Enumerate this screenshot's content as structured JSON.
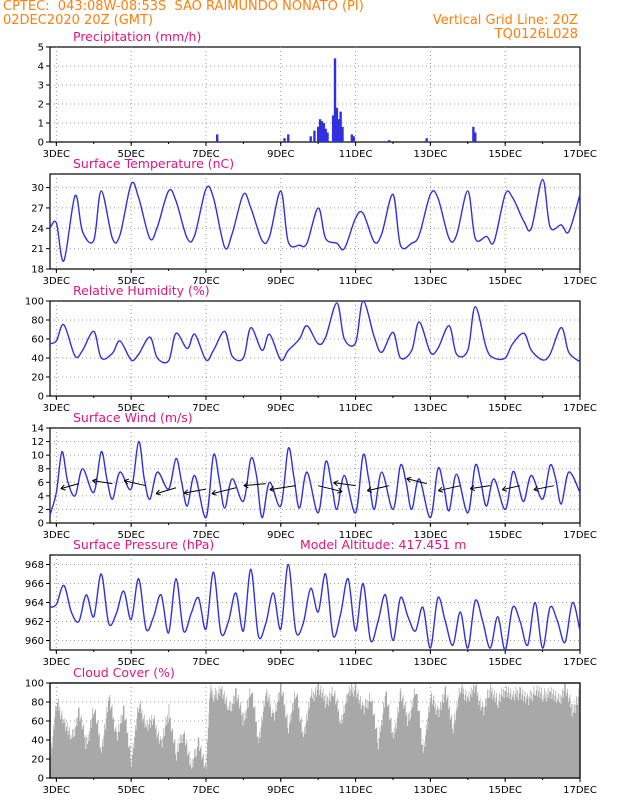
{
  "header": {
    "line1_left": "CPTEC:  043:08W-08:53S  SAO RAIMUNDO NONATO (PI)",
    "line2_left": "02DEC2020 20Z (GMT)",
    "line2_right": "Vertical Grid Line: 20Z",
    "line3_right": "TQ0126L028"
  },
  "colors": {
    "line": "#3030e0",
    "bar": "#3030e0",
    "cloud": "#a8a8a8",
    "title": "#e0157d",
    "header": "#ff7f0e",
    "grid": "#999999"
  },
  "x_ticks": [
    "3DEC",
    "5DEC",
    "7DEC",
    "9DEC",
    "11DEC",
    "13DEC",
    "15DEC",
    "17DEC"
  ],
  "chart_data": [
    {
      "type": "bar",
      "title": "Precipitation (mm/h)",
      "x_range_days": [
        2.83,
        17.0
      ],
      "ylim": [
        0,
        5
      ],
      "yticks": [
        0,
        1,
        2,
        3,
        4,
        5
      ],
      "bars": [
        {
          "day": 7.3,
          "value": 0.4
        },
        {
          "day": 9.1,
          "value": 0.2
        },
        {
          "day": 9.2,
          "value": 0.4
        },
        {
          "day": 9.8,
          "value": 0.3
        },
        {
          "day": 9.9,
          "value": 0.6
        },
        {
          "day": 10.0,
          "value": 0.8
        },
        {
          "day": 10.05,
          "value": 1.2
        },
        {
          "day": 10.1,
          "value": 1.1
        },
        {
          "day": 10.15,
          "value": 1.0
        },
        {
          "day": 10.2,
          "value": 0.7
        },
        {
          "day": 10.25,
          "value": 0.5
        },
        {
          "day": 10.4,
          "value": 1.4
        },
        {
          "day": 10.45,
          "value": 4.4
        },
        {
          "day": 10.5,
          "value": 1.8
        },
        {
          "day": 10.55,
          "value": 1.2
        },
        {
          "day": 10.6,
          "value": 1.6
        },
        {
          "day": 10.65,
          "value": 0.8
        },
        {
          "day": 10.9,
          "value": 0.4
        },
        {
          "day": 10.95,
          "value": 0.3
        },
        {
          "day": 11.9,
          "value": 0.1
        },
        {
          "day": 12.9,
          "value": 0.2
        },
        {
          "day": 14.15,
          "value": 0.8
        },
        {
          "day": 14.2,
          "value": 0.5
        }
      ]
    },
    {
      "type": "line",
      "title": "Surface Temperature (nC)",
      "x_range_days": [
        2.83,
        17.0
      ],
      "ylim": [
        18,
        32
      ],
      "yticks": [
        18,
        21,
        24,
        27,
        30
      ],
      "x": [
        2.83,
        3.0,
        3.2,
        3.5,
        3.7,
        4.0,
        4.2,
        4.5,
        4.7,
        5.0,
        5.2,
        5.5,
        5.7,
        6.0,
        6.2,
        6.5,
        6.7,
        7.0,
        7.2,
        7.5,
        7.7,
        8.0,
        8.2,
        8.5,
        8.7,
        9.0,
        9.2,
        9.5,
        9.7,
        10.0,
        10.2,
        10.5,
        10.7,
        11.0,
        11.2,
        11.5,
        11.7,
        12.0,
        12.2,
        12.5,
        12.7,
        13.0,
        13.2,
        13.5,
        13.7,
        14.0,
        14.2,
        14.5,
        14.7,
        15.0,
        15.2,
        15.5,
        15.7,
        16.0,
        16.2,
        16.5,
        16.7,
        17.0
      ],
      "values": [
        24,
        24.8,
        19.2,
        28.8,
        23.5,
        22.2,
        29.5,
        22.5,
        23.0,
        30.5,
        28.5,
        22.5,
        24.2,
        29.5,
        28.0,
        22.5,
        23.0,
        29.8,
        28.5,
        21.2,
        23.2,
        29.0,
        27.0,
        22.2,
        22.8,
        29.5,
        22.0,
        21.5,
        21.8,
        27.0,
        22.5,
        21.8,
        21.0,
        25.5,
        26.2,
        22.0,
        23.2,
        29.0,
        21.5,
        21.8,
        23.0,
        29.0,
        28.5,
        22.5,
        23.0,
        29.5,
        22.5,
        22.8,
        22.0,
        29.0,
        28.5,
        25.0,
        24.0,
        31.2,
        24.2,
        24.5,
        23.5,
        29.0
      ]
    },
    {
      "type": "line",
      "title": "Relative Humidity (%)",
      "x_range_days": [
        2.83,
        17.0
      ],
      "ylim": [
        0,
        100
      ],
      "yticks": [
        0,
        20,
        40,
        60,
        80,
        100
      ],
      "x": [
        2.83,
        3.0,
        3.2,
        3.5,
        3.7,
        4.0,
        4.2,
        4.5,
        4.7,
        5.0,
        5.2,
        5.5,
        5.7,
        6.0,
        6.2,
        6.5,
        6.7,
        7.0,
        7.2,
        7.5,
        7.7,
        8.0,
        8.2,
        8.5,
        8.7,
        9.0,
        9.2,
        9.5,
        9.7,
        10.0,
        10.2,
        10.5,
        10.7,
        11.0,
        11.2,
        11.5,
        11.7,
        12.0,
        12.2,
        12.5,
        12.7,
        13.0,
        13.2,
        13.5,
        13.7,
        14.0,
        14.2,
        14.5,
        14.7,
        15.0,
        15.2,
        15.5,
        15.7,
        16.0,
        16.2,
        16.5,
        16.7,
        17.0
      ],
      "values": [
        55,
        58,
        75,
        42,
        48,
        68,
        40,
        45,
        58,
        38,
        44,
        62,
        40,
        37,
        66,
        50,
        65,
        38,
        48,
        68,
        42,
        40,
        72,
        48,
        65,
        38,
        48,
        60,
        74,
        55,
        62,
        98,
        60,
        56,
        100,
        62,
        46,
        67,
        40,
        48,
        78,
        46,
        50,
        74,
        44,
        48,
        94,
        50,
        40,
        40,
        55,
        66,
        48,
        38,
        44,
        72,
        46,
        36
      ]
    },
    {
      "type": "line",
      "title": "Surface Wind (m/s)",
      "x_range_days": [
        2.83,
        17.0
      ],
      "ylim": [
        0,
        14
      ],
      "yticks": [
        0,
        2,
        4,
        6,
        8,
        10,
        12,
        14
      ],
      "x": [
        2.83,
        3.0,
        3.15,
        3.3,
        3.5,
        3.7,
        4.0,
        4.2,
        4.35,
        4.5,
        4.7,
        5.0,
        5.2,
        5.35,
        5.5,
        5.7,
        6.0,
        6.2,
        6.35,
        6.5,
        6.7,
        7.0,
        7.2,
        7.35,
        7.5,
        7.7,
        8.0,
        8.2,
        8.35,
        8.5,
        8.7,
        9.0,
        9.2,
        9.35,
        9.5,
        9.7,
        10.0,
        10.2,
        10.35,
        10.5,
        10.7,
        11.0,
        11.2,
        11.35,
        11.5,
        11.7,
        12.0,
        12.2,
        12.35,
        12.5,
        12.7,
        13.0,
        13.2,
        13.35,
        13.5,
        13.7,
        14.0,
        14.2,
        14.35,
        14.5,
        14.7,
        15.0,
        15.2,
        15.35,
        15.5,
        15.7,
        16.0,
        16.2,
        16.35,
        16.5,
        16.7,
        17.0
      ],
      "values": [
        1.2,
        4.5,
        10.5,
        6.2,
        4.0,
        8.0,
        4.5,
        10.5,
        6.5,
        3.5,
        7.5,
        5.0,
        12.0,
        6.5,
        3.5,
        7.5,
        5.0,
        9.5,
        6.0,
        2.5,
        7.0,
        0.8,
        10.0,
        6.5,
        2.2,
        6.5,
        3.2,
        9.5,
        7.0,
        0.8,
        6.0,
        2.5,
        11.0,
        6.8,
        2.2,
        7.5,
        1.5,
        9.0,
        6.0,
        2.0,
        7.0,
        1.5,
        10.0,
        6.5,
        2.0,
        7.5,
        2.0,
        8.5,
        6.0,
        2.0,
        6.5,
        0.8,
        8.0,
        5.5,
        1.8,
        7.2,
        1.5,
        8.5,
        6.0,
        2.5,
        6.5,
        2.0,
        7.5,
        5.5,
        3.2,
        7.0,
        3.5,
        8.5,
        6.5,
        2.8,
        7.5,
        4.5
      ],
      "barbs": [
        {
          "day": 3.6,
          "value": 5.8,
          "dx": -18,
          "dy": 5
        },
        {
          "day": 4.5,
          "value": 5.8,
          "dx": -20,
          "dy": -3
        },
        {
          "day": 5.4,
          "value": 5.5,
          "dx": -22,
          "dy": -5
        },
        {
          "day": 6.2,
          "value": 5.2,
          "dx": -20,
          "dy": 6
        },
        {
          "day": 7.0,
          "value": 5.0,
          "dx": -22,
          "dy": 4
        },
        {
          "day": 7.8,
          "value": 5.2,
          "dx": -24,
          "dy": 6
        },
        {
          "day": 8.6,
          "value": 5.8,
          "dx": -22,
          "dy": 2
        },
        {
          "day": 9.4,
          "value": 5.5,
          "dx": -26,
          "dy": 4
        },
        {
          "day": 10.0,
          "value": 5.5,
          "dx": 24,
          "dy": 6
        },
        {
          "day": 11.0,
          "value": 5.5,
          "dx": -22,
          "dy": -3
        },
        {
          "day": 11.9,
          "value": 5.5,
          "dx": -22,
          "dy": 5
        },
        {
          "day": 12.9,
          "value": 5.8,
          "dx": -20,
          "dy": -5
        },
        {
          "day": 13.8,
          "value": 5.5,
          "dx": -22,
          "dy": 5
        },
        {
          "day": 14.6,
          "value": 5.5,
          "dx": -20,
          "dy": 3
        },
        {
          "day": 15.4,
          "value": 5.5,
          "dx": -18,
          "dy": 4
        },
        {
          "day": 16.3,
          "value": 5.5,
          "dx": -20,
          "dy": 4
        }
      ]
    },
    {
      "type": "line",
      "title": "Surface Pressure (hPa)",
      "annotation": "Model Altitude: 417.451 m",
      "x_range_days": [
        2.83,
        17.0
      ],
      "ylim": [
        959,
        969
      ],
      "yticks": [
        960,
        962,
        964,
        966,
        968
      ],
      "x": [
        2.83,
        3.0,
        3.2,
        3.4,
        3.6,
        3.8,
        4.0,
        4.2,
        4.4,
        4.6,
        4.8,
        5.0,
        5.2,
        5.4,
        5.6,
        5.8,
        6.0,
        6.2,
        6.4,
        6.6,
        6.8,
        7.0,
        7.2,
        7.4,
        7.6,
        7.8,
        8.0,
        8.2,
        8.4,
        8.6,
        8.8,
        9.0,
        9.2,
        9.4,
        9.6,
        9.8,
        10.0,
        10.2,
        10.4,
        10.6,
        10.8,
        11.0,
        11.2,
        11.4,
        11.6,
        11.8,
        12.0,
        12.2,
        12.4,
        12.6,
        12.8,
        13.0,
        13.2,
        13.4,
        13.6,
        13.8,
        14.0,
        14.2,
        14.4,
        14.6,
        14.8,
        15.0,
        15.2,
        15.4,
        15.6,
        15.8,
        16.0,
        16.2,
        16.4,
        16.6,
        16.8,
        17.0
      ],
      "values": [
        963.5,
        963.8,
        965.8,
        963.0,
        962.0,
        964.8,
        962.5,
        967.0,
        961.8,
        962.8,
        965.2,
        962.2,
        966.5,
        961.2,
        962.5,
        964.8,
        960.8,
        966.5,
        961.0,
        962.8,
        964.5,
        961.2,
        967.2,
        960.8,
        962.0,
        965.0,
        961.0,
        967.5,
        960.5,
        961.8,
        965.0,
        961.2,
        968.0,
        961.0,
        961.8,
        965.5,
        963.0,
        967.0,
        960.5,
        962.8,
        966.5,
        961.0,
        966.0,
        960.0,
        962.0,
        964.8,
        960.0,
        964.5,
        962.5,
        961.0,
        963.5,
        959.2,
        964.5,
        962.0,
        959.5,
        963.0,
        959.2,
        964.2,
        962.0,
        959.2,
        962.5,
        959.0,
        963.5,
        962.0,
        959.5,
        964.0,
        959.2,
        963.5,
        962.0,
        959.8,
        964.0,
        961.0
      ]
    },
    {
      "type": "area",
      "title": "Cloud Cover (%)",
      "x_range_days": [
        2.83,
        17.0
      ],
      "ylim": [
        0,
        100
      ],
      "yticks": [
        0,
        20,
        40,
        60,
        80,
        100
      ],
      "x": [
        2.83,
        3.0,
        3.2,
        3.4,
        3.6,
        3.8,
        4.0,
        4.2,
        4.4,
        4.6,
        4.8,
        5.0,
        5.2,
        5.4,
        5.6,
        5.8,
        6.0,
        6.2,
        6.4,
        6.6,
        6.8,
        7.0,
        7.1,
        7.2,
        7.4,
        7.6,
        7.8,
        8.0,
        8.2,
        8.4,
        8.6,
        8.8,
        9.0,
        9.2,
        9.4,
        9.6,
        9.8,
        10.0,
        10.2,
        10.4,
        10.6,
        10.8,
        11.0,
        11.2,
        11.4,
        11.6,
        11.8,
        12.0,
        12.2,
        12.4,
        12.6,
        12.8,
        13.0,
        13.2,
        13.4,
        13.6,
        13.8,
        14.0,
        14.2,
        14.4,
        14.6,
        14.8,
        15.0,
        15.2,
        15.4,
        15.6,
        15.8,
        16.0,
        16.2,
        16.4,
        16.6,
        16.8,
        17.0
      ],
      "values": [
        20,
        80,
        60,
        40,
        70,
        35,
        75,
        30,
        85,
        45,
        70,
        20,
        78,
        55,
        60,
        35,
        70,
        25,
        50,
        10,
        40,
        5,
        97,
        85,
        95,
        70,
        90,
        60,
        95,
        40,
        90,
        65,
        95,
        55,
        90,
        45,
        85,
        95,
        80,
        92,
        60,
        90,
        95,
        70,
        88,
        35,
        92,
        40,
        90,
        60,
        95,
        30,
        85,
        70,
        90,
        55,
        95,
        85,
        95,
        70,
        95,
        80,
        95,
        85,
        92,
        80,
        95,
        85,
        92,
        80,
        95,
        70,
        92
      ]
    }
  ]
}
